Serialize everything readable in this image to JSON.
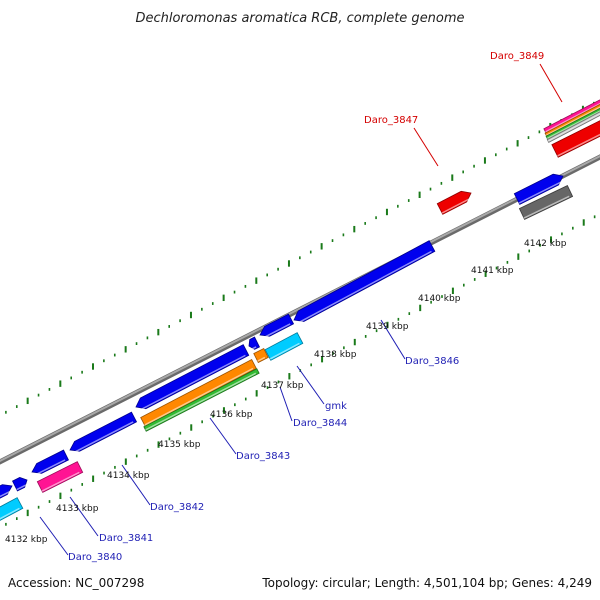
{
  "title": "Dechloromonas aromatica RCB, complete genome",
  "footer": {
    "accession": "Accession: NC_007298",
    "summary": "Topology: circular; Length: 4,501,104 bp; Genes: 4,249"
  },
  "ticks": [
    {
      "label": "4132 kbp",
      "kbp": 4132
    },
    {
      "label": "4133 kbp",
      "kbp": 4133
    },
    {
      "label": "4134 kbp",
      "kbp": 4134
    },
    {
      "label": "4135 kbp",
      "kbp": 4135
    },
    {
      "label": "4136 kbp",
      "kbp": 4136
    },
    {
      "label": "4137 kbp",
      "kbp": 4137
    },
    {
      "label": "4138 kbp",
      "kbp": 4138
    },
    {
      "label": "4139 kbp",
      "kbp": 4139
    },
    {
      "label": "4140 kbp",
      "kbp": 4140
    },
    {
      "label": "4141 kbp",
      "kbp": 4141
    },
    {
      "label": "4142 kbp",
      "kbp": 4142
    }
  ],
  "gene_labels": [
    {
      "text": "Daro_3840",
      "color": "#1f1fb4"
    },
    {
      "text": "Daro_3841",
      "color": "#1f1fb4"
    },
    {
      "text": "Daro_3842",
      "color": "#1f1fb4"
    },
    {
      "text": "Daro_3843",
      "color": "#1f1fb4"
    },
    {
      "text": "Daro_3844",
      "color": "#1f1fb4"
    },
    {
      "text": "gmk",
      "color": "#1f1fb4"
    },
    {
      "text": "Daro_3846",
      "color": "#1f1fb4"
    },
    {
      "text": "Daro_3847",
      "color": "#d40000"
    },
    {
      "text": "Daro_3849",
      "color": "#d40000"
    }
  ],
  "colors": {
    "backbone": "#8a8a8a",
    "forward_gene": "#0000ee",
    "reverse_gene": "#ee0000",
    "magenta": "#ff1493",
    "cyan": "#00ccff",
    "orange": "#ff8800",
    "green": "#33bb33",
    "gray_gene": "#666666",
    "dots": "#1a7a1a"
  }
}
